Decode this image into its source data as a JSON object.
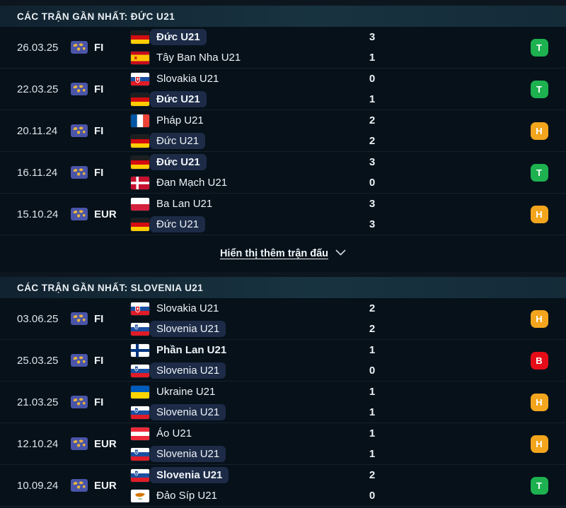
{
  "colors": {
    "result_T": "#1db150",
    "result_H": "#f2a51d",
    "result_B": "#e60c18",
    "team_highlight": "#1d2b47",
    "competition_icon_bg": "#4a55a8",
    "competition_icon_map": "#e8b441"
  },
  "sections": [
    {
      "header": "CÁC TRẬN GẦN NHẤT: ĐỨC U21",
      "show_more_label": "Hiển thị thêm trận đấu",
      "matches": [
        {
          "date": "26.03.25",
          "competition": "FI",
          "result": "T",
          "teams": [
            {
              "name": "Đức U21",
              "flag": "germany",
              "score": "3",
              "highlight": true,
              "winner": true
            },
            {
              "name": "Tây Ban Nha U21",
              "flag": "spain",
              "score": "1",
              "highlight": false,
              "winner": false
            }
          ]
        },
        {
          "date": "22.03.25",
          "competition": "FI",
          "result": "T",
          "teams": [
            {
              "name": "Slovakia U21",
              "flag": "slovakia",
              "score": "0",
              "highlight": false,
              "winner": false
            },
            {
              "name": "Đức U21",
              "flag": "germany",
              "score": "1",
              "highlight": true,
              "winner": true
            }
          ]
        },
        {
          "date": "20.11.24",
          "competition": "FI",
          "result": "H",
          "teams": [
            {
              "name": "Pháp U21",
              "flag": "france",
              "score": "2",
              "highlight": false,
              "winner": false
            },
            {
              "name": "Đức U21",
              "flag": "germany",
              "score": "2",
              "highlight": true,
              "winner": false
            }
          ]
        },
        {
          "date": "16.11.24",
          "competition": "FI",
          "result": "T",
          "teams": [
            {
              "name": "Đức U21",
              "flag": "germany",
              "score": "3",
              "highlight": true,
              "winner": true
            },
            {
              "name": "Đan Mạch U21",
              "flag": "denmark",
              "score": "0",
              "highlight": false,
              "winner": false
            }
          ]
        },
        {
          "date": "15.10.24",
          "competition": "EUR",
          "result": "H",
          "teams": [
            {
              "name": "Ba Lan U21",
              "flag": "poland",
              "score": "3",
              "highlight": false,
              "winner": false
            },
            {
              "name": "Đức U21",
              "flag": "germany",
              "score": "3",
              "highlight": true,
              "winner": false
            }
          ]
        }
      ]
    },
    {
      "header": "CÁC TRẬN GẦN NHẤT: SLOVENIA U21",
      "matches": [
        {
          "date": "03.06.25",
          "competition": "FI",
          "result": "H",
          "teams": [
            {
              "name": "Slovakia U21",
              "flag": "slovakia",
              "score": "2",
              "highlight": false,
              "winner": false
            },
            {
              "name": "Slovenia U21",
              "flag": "slovenia",
              "score": "2",
              "highlight": true,
              "winner": false
            }
          ]
        },
        {
          "date": "25.03.25",
          "competition": "FI",
          "result": "B",
          "teams": [
            {
              "name": "Phần Lan U21",
              "flag": "finland",
              "score": "1",
              "highlight": false,
              "winner": true
            },
            {
              "name": "Slovenia U21",
              "flag": "slovenia",
              "score": "0",
              "highlight": true,
              "winner": false
            }
          ]
        },
        {
          "date": "21.03.25",
          "competition": "FI",
          "result": "H",
          "teams": [
            {
              "name": "Ukraine U21",
              "flag": "ukraine",
              "score": "1",
              "highlight": false,
              "winner": false
            },
            {
              "name": "Slovenia U21",
              "flag": "slovenia",
              "score": "1",
              "highlight": true,
              "winner": false
            }
          ]
        },
        {
          "date": "12.10.24",
          "competition": "EUR",
          "result": "H",
          "teams": [
            {
              "name": "Áo U21",
              "flag": "austria",
              "score": "1",
              "highlight": false,
              "winner": false
            },
            {
              "name": "Slovenia U21",
              "flag": "slovenia",
              "score": "1",
              "highlight": true,
              "winner": false
            }
          ]
        },
        {
          "date": "10.09.24",
          "competition": "EUR",
          "result": "T",
          "teams": [
            {
              "name": "Slovenia U21",
              "flag": "slovenia",
              "score": "2",
              "highlight": true,
              "winner": true
            },
            {
              "name": "Đảo Síp U21",
              "flag": "cyprus",
              "score": "0",
              "highlight": false,
              "winner": false
            }
          ]
        }
      ]
    }
  ]
}
